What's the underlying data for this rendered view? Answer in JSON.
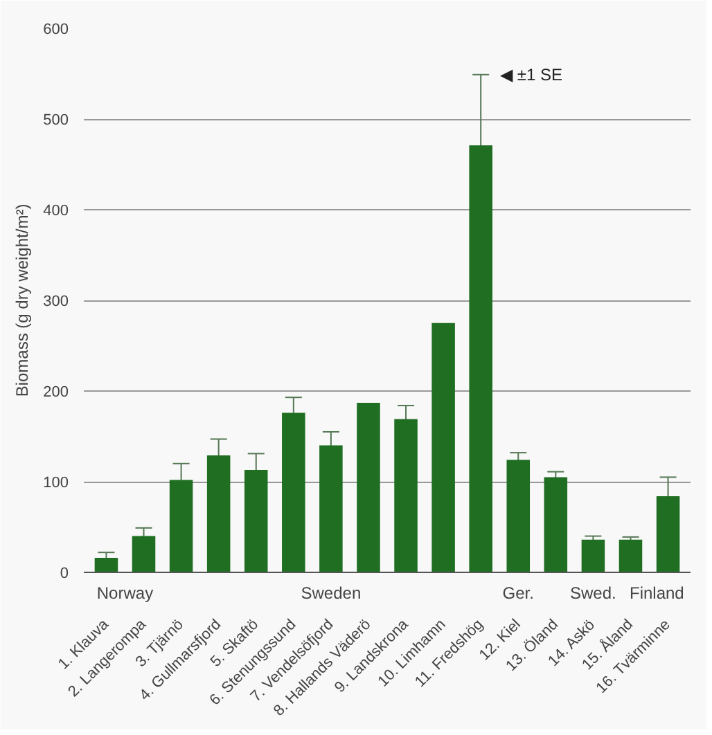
{
  "chart_data": {
    "type": "bar",
    "ylabel": "Biomass (g dry weight/m²)",
    "categories": [
      "1. Klauva",
      "2. Langerompa",
      "3. Tjärnö",
      "4. Gullmarsfjord",
      "5. Skaftö",
      "6. Stenungssund",
      "7. Vendelsöfjord",
      "8. Hallands Väderö",
      "9. Landskrona",
      "10. Limhamn",
      "11. Fredshög",
      "12. Kiel",
      "13. Öland",
      "14. Askö",
      "15. Åland",
      "16. Tvärminne"
    ],
    "values": [
      16,
      40,
      102,
      129,
      113,
      176,
      140,
      187,
      169,
      275,
      471,
      124,
      105,
      36,
      36,
      84
    ],
    "errors": [
      6,
      9,
      18,
      18,
      18,
      17,
      15,
      null,
      15,
      null,
      78,
      8,
      6,
      4,
      3,
      21
    ],
    "color": "#1f6e22",
    "ylim": [
      0,
      600
    ],
    "yticks": [
      0,
      100,
      200,
      300,
      400,
      500,
      600
    ],
    "grid": "y",
    "annotations": [
      {
        "text": "◀ ±1 SE",
        "x": "11. Fredshög",
        "y": 549
      },
      "Norway",
      "Sweden",
      "Ger.",
      "Swed.",
      "Finland"
    ]
  }
}
